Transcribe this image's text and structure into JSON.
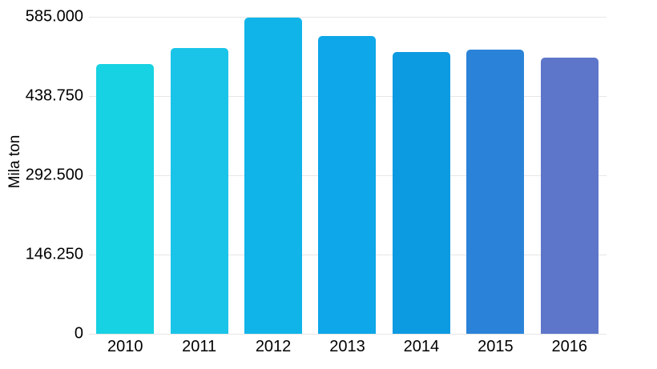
{
  "chart_data": {
    "type": "bar",
    "title": "",
    "xlabel": "",
    "ylabel": "Mila ton",
    "categories": [
      "2010",
      "2011",
      "2012",
      "2013",
      "2014",
      "2015",
      "2016"
    ],
    "values": [
      498000,
      528000,
      584000,
      550000,
      520000,
      524000,
      509000
    ],
    "ylim": [
      0,
      585000
    ],
    "ytick_values": [
      0,
      146250,
      292500,
      438750,
      585000
    ],
    "ytick_labels": [
      "0",
      "146.250",
      "292.500",
      "438.750",
      "585.000"
    ],
    "bar_colors": [
      "#17d2e2",
      "#1ac4e8",
      "#10b4e9",
      "#0ea7e9",
      "#0c9ae1",
      "#2b83d9",
      "#5e76c9"
    ],
    "gridline_color": "#e6e6e6",
    "text_color": "#000000",
    "background_color": "#ffffff",
    "grid": true,
    "legend": false
  }
}
